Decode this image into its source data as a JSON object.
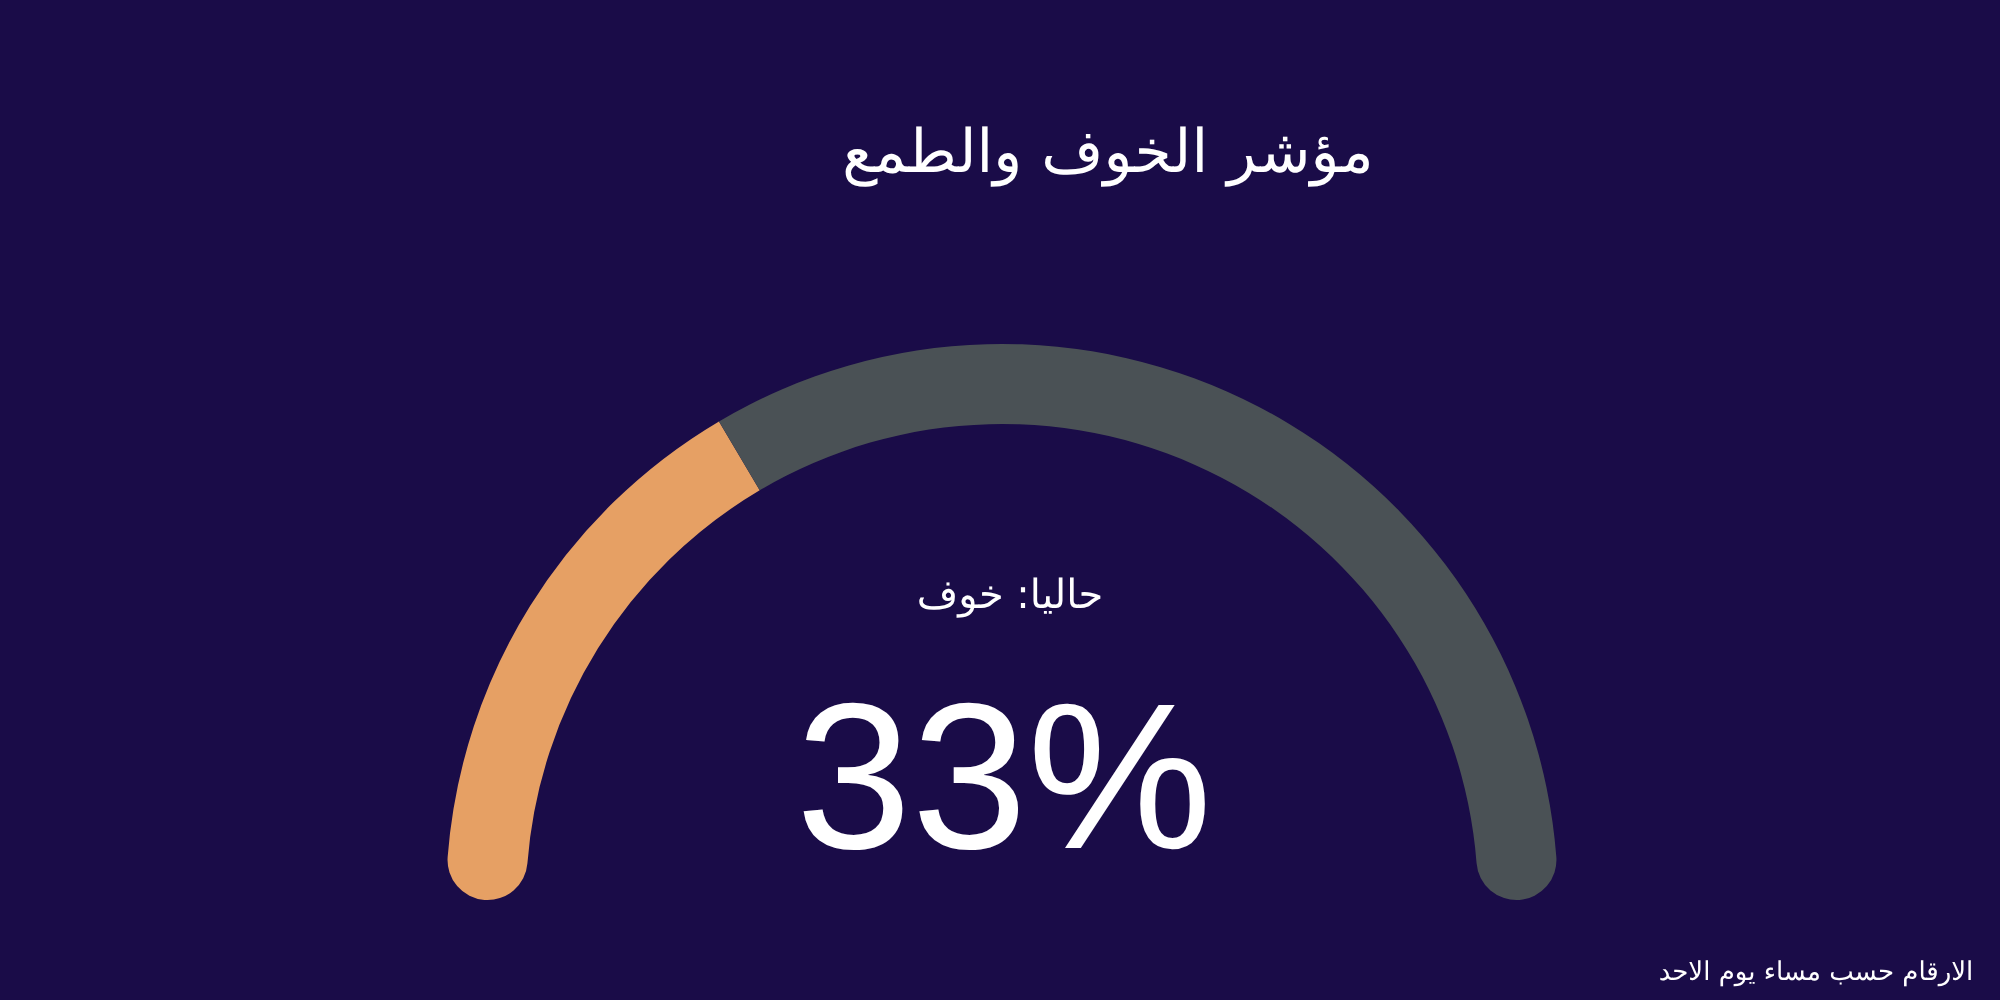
{
  "chart_data": {
    "type": "donut",
    "title": "مؤشر الخوف والطمع",
    "categories": [
      null,
      null
    ],
    "values": [
      33,
      67
    ],
    "colors": [
      "#e6a064",
      "#4a5155"
    ],
    "annotations": [
      "حاليا: خوف",
      "33%",
      "الارقام حسب مساء يوم الاحد"
    ]
  }
}
